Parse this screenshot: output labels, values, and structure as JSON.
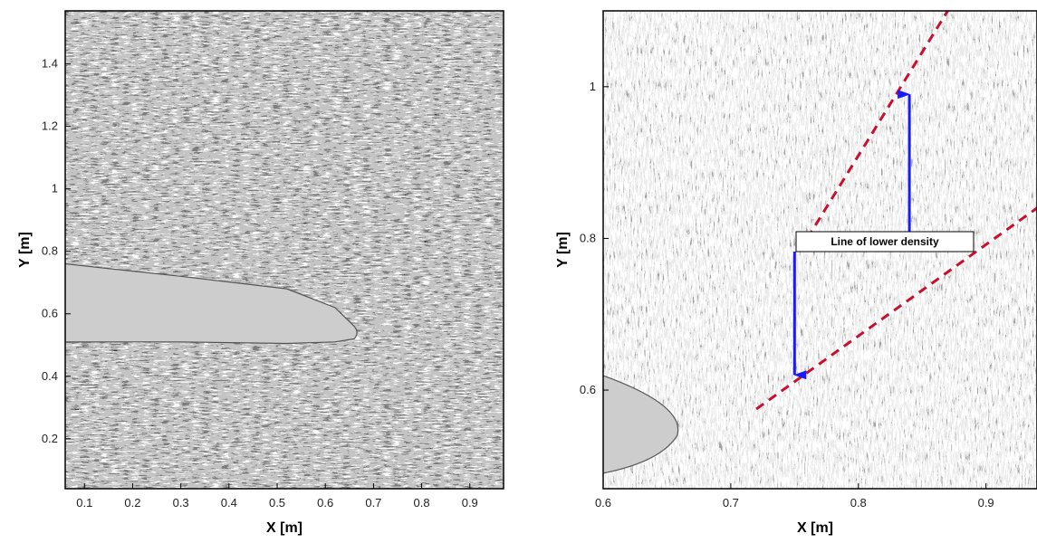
{
  "chart_data": [
    {
      "type": "vector-field",
      "xlabel": "X [m]",
      "ylabel": "Y [m]",
      "xlim": [
        0.06,
        0.97
      ],
      "ylim": [
        0.04,
        1.57
      ],
      "xticks": [
        0.1,
        0.2,
        0.3,
        0.4,
        0.5,
        0.6,
        0.7,
        0.8,
        0.9
      ],
      "xtick_labels": [
        "0.1",
        "0.2",
        "0.3",
        "0.4",
        "0.5",
        "0.6",
        "0.7",
        "0.8",
        "0.9"
      ],
      "yticks": [
        0.2,
        0.4,
        0.6,
        0.8,
        1.0,
        1.2,
        1.4
      ],
      "ytick_labels": [
        "0.2",
        "0.4",
        "0.6",
        "0.8",
        "1",
        "1.2",
        "1.4"
      ],
      "grid": false,
      "body": {
        "shape": "blunt body",
        "trailing_edge_x": 0.66,
        "upper_edge_y": [
          [
            0.06,
            0.76
          ],
          [
            0.3,
            0.72
          ],
          [
            0.52,
            0.68
          ],
          [
            0.62,
            0.62
          ],
          [
            0.66,
            0.56
          ]
        ],
        "lower_edge_y": [
          [
            0.06,
            0.51
          ],
          [
            0.3,
            0.51
          ],
          [
            0.52,
            0.505
          ],
          [
            0.62,
            0.51
          ],
          [
            0.66,
            0.52
          ]
        ]
      }
    },
    {
      "type": "vector-field",
      "xlabel": "X [m]",
      "ylabel": "Y [m]",
      "xlim": [
        0.6,
        0.94
      ],
      "ylim": [
        0.47,
        1.1
      ],
      "xticks": [
        0.6,
        0.7,
        0.8,
        0.9
      ],
      "xtick_labels": [
        "0.6",
        "0.7",
        "0.8",
        "0.9"
      ],
      "yticks": [
        0.6,
        0.8,
        1.0
      ],
      "ytick_labels": [
        "0.6",
        "0.8",
        "1"
      ],
      "grid": false,
      "annotations": [
        {
          "text": "Line of lower density",
          "arrow_color": "#1a1aff",
          "arrow_targets": [
            [
              0.75,
              0.62
            ],
            [
              0.84,
              0.99
            ]
          ]
        }
      ],
      "lines_of_lower_density": [
        {
          "style": "dashed",
          "colors": [
            "#c8102e",
            "#ffffff"
          ],
          "points": [
            [
              0.72,
              0.575
            ],
            [
              0.94,
              0.84
            ]
          ]
        },
        {
          "style": "dashed",
          "colors": [
            "#c8102e",
            "#ffffff"
          ],
          "points": [
            [
              0.76,
              0.8
            ],
            [
              0.87,
              1.1
            ]
          ]
        }
      ]
    }
  ]
}
